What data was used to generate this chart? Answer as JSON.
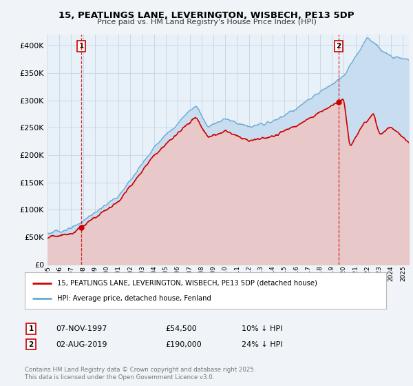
{
  "title": "15, PEATLINGS LANE, LEVERINGTON, WISBECH, PE13 5DP",
  "subtitle": "Price paid vs. HM Land Registry's House Price Index (HPI)",
  "background_color": "#f0f4f8",
  "plot_bg_color": "#e8f0f8",
  "grid_color": "#c8d8e8",
  "red_color": "#cc0000",
  "blue_color": "#6aaad4",
  "blue_fill_color": "#c8ddf0",
  "ylim": [
    0,
    420000
  ],
  "yticks": [
    0,
    50000,
    100000,
    150000,
    200000,
    250000,
    300000,
    350000,
    400000
  ],
  "ytick_labels": [
    "£0",
    "£50K",
    "£100K",
    "£150K",
    "£200K",
    "£250K",
    "£300K",
    "£350K",
    "£400K"
  ],
  "xlim_start": 1995,
  "xlim_end": 2025.5,
  "annotation1": {
    "label": "1",
    "date": "07-NOV-1997",
    "price": "£54,500",
    "pct": "10% ↓ HPI"
  },
  "annotation2": {
    "label": "2",
    "date": "02-AUG-2019",
    "price": "£190,000",
    "pct": "24% ↓ HPI"
  },
  "legend_line1": "15, PEATLINGS LANE, LEVERINGTON, WISBECH, PE13 5DP (detached house)",
  "legend_line2": "HPI: Average price, detached house, Fenland",
  "footer": "Contains HM Land Registry data © Crown copyright and database right 2025.\nThis data is licensed under the Open Government Licence v3.0.",
  "sale1_x": 1997.85,
  "sale1_y": 54500,
  "sale2_x": 2019.58,
  "sale2_y": 190000
}
